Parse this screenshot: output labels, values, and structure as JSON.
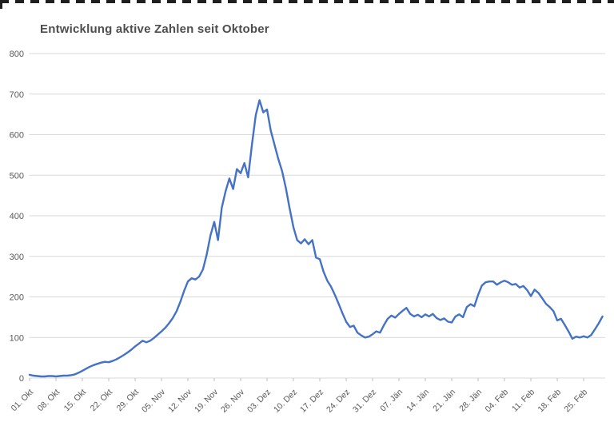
{
  "title": "Entwicklung aktive Zahlen seit Oktober",
  "colors": {
    "line": "#4472C4",
    "gridline": "#D9D9D9",
    "axis_tick": "#BFBFBF",
    "label_text": "#595959",
    "title_text": "#4d4d4d",
    "top_artifact": "#1f1f1f",
    "background": "#ffffff"
  },
  "chart_data": {
    "type": "line",
    "title": "Entwicklung aktive Zahlen seit Oktober",
    "legend": "none",
    "grid": "horizontal",
    "frequency": "daily",
    "ylim": [
      0,
      800
    ],
    "y_tick_labels": [
      "0",
      "100",
      "200",
      "300",
      "400",
      "500",
      "600",
      "700",
      "800"
    ],
    "x_tick_labels": [
      "01. Okt",
      "08. Okt",
      "15. Okt",
      "22. Okt",
      "29. Okt",
      "05. Nov",
      "12. Nov",
      "19. Nov",
      "26. Nov",
      "03. Dez",
      "10. Dez",
      "17. Dez",
      "24. Dez",
      "31. Dez",
      "07. Jän",
      "14. Jän",
      "21. Jän",
      "28. Jän",
      "04. Feb",
      "11. Feb",
      "18. Feb",
      "25. Feb"
    ],
    "days_per_x_tick": 7,
    "values": [
      8,
      6,
      5,
      4,
      4,
      5,
      5,
      4,
      5,
      6,
      6,
      7,
      9,
      13,
      18,
      23,
      28,
      32,
      35,
      38,
      40,
      39,
      42,
      46,
      51,
      57,
      63,
      70,
      78,
      85,
      92,
      88,
      92,
      99,
      107,
      115,
      124,
      135,
      148,
      165,
      188,
      215,
      238,
      246,
      243,
      250,
      268,
      305,
      352,
      385,
      340,
      420,
      460,
      492,
      466,
      515,
      505,
      530,
      495,
      575,
      648,
      685,
      655,
      662,
      610,
      575,
      540,
      510,
      468,
      418,
      372,
      340,
      332,
      342,
      330,
      340,
      297,
      293,
      262,
      240,
      225,
      205,
      183,
      160,
      139,
      126,
      129,
      112,
      105,
      100,
      102,
      108,
      115,
      112,
      130,
      146,
      154,
      149,
      158,
      166,
      173,
      158,
      152,
      156,
      150,
      157,
      152,
      158,
      148,
      143,
      147,
      139,
      137,
      152,
      157,
      150,
      175,
      182,
      177,
      205,
      228,
      236,
      238,
      238,
      230,
      236,
      240,
      236,
      230,
      232,
      223,
      227,
      217,
      202,
      218,
      210,
      197,
      183,
      175,
      165,
      142,
      146,
      131,
      115,
      97,
      102,
      100,
      103,
      100,
      106,
      120,
      135,
      152
    ]
  }
}
